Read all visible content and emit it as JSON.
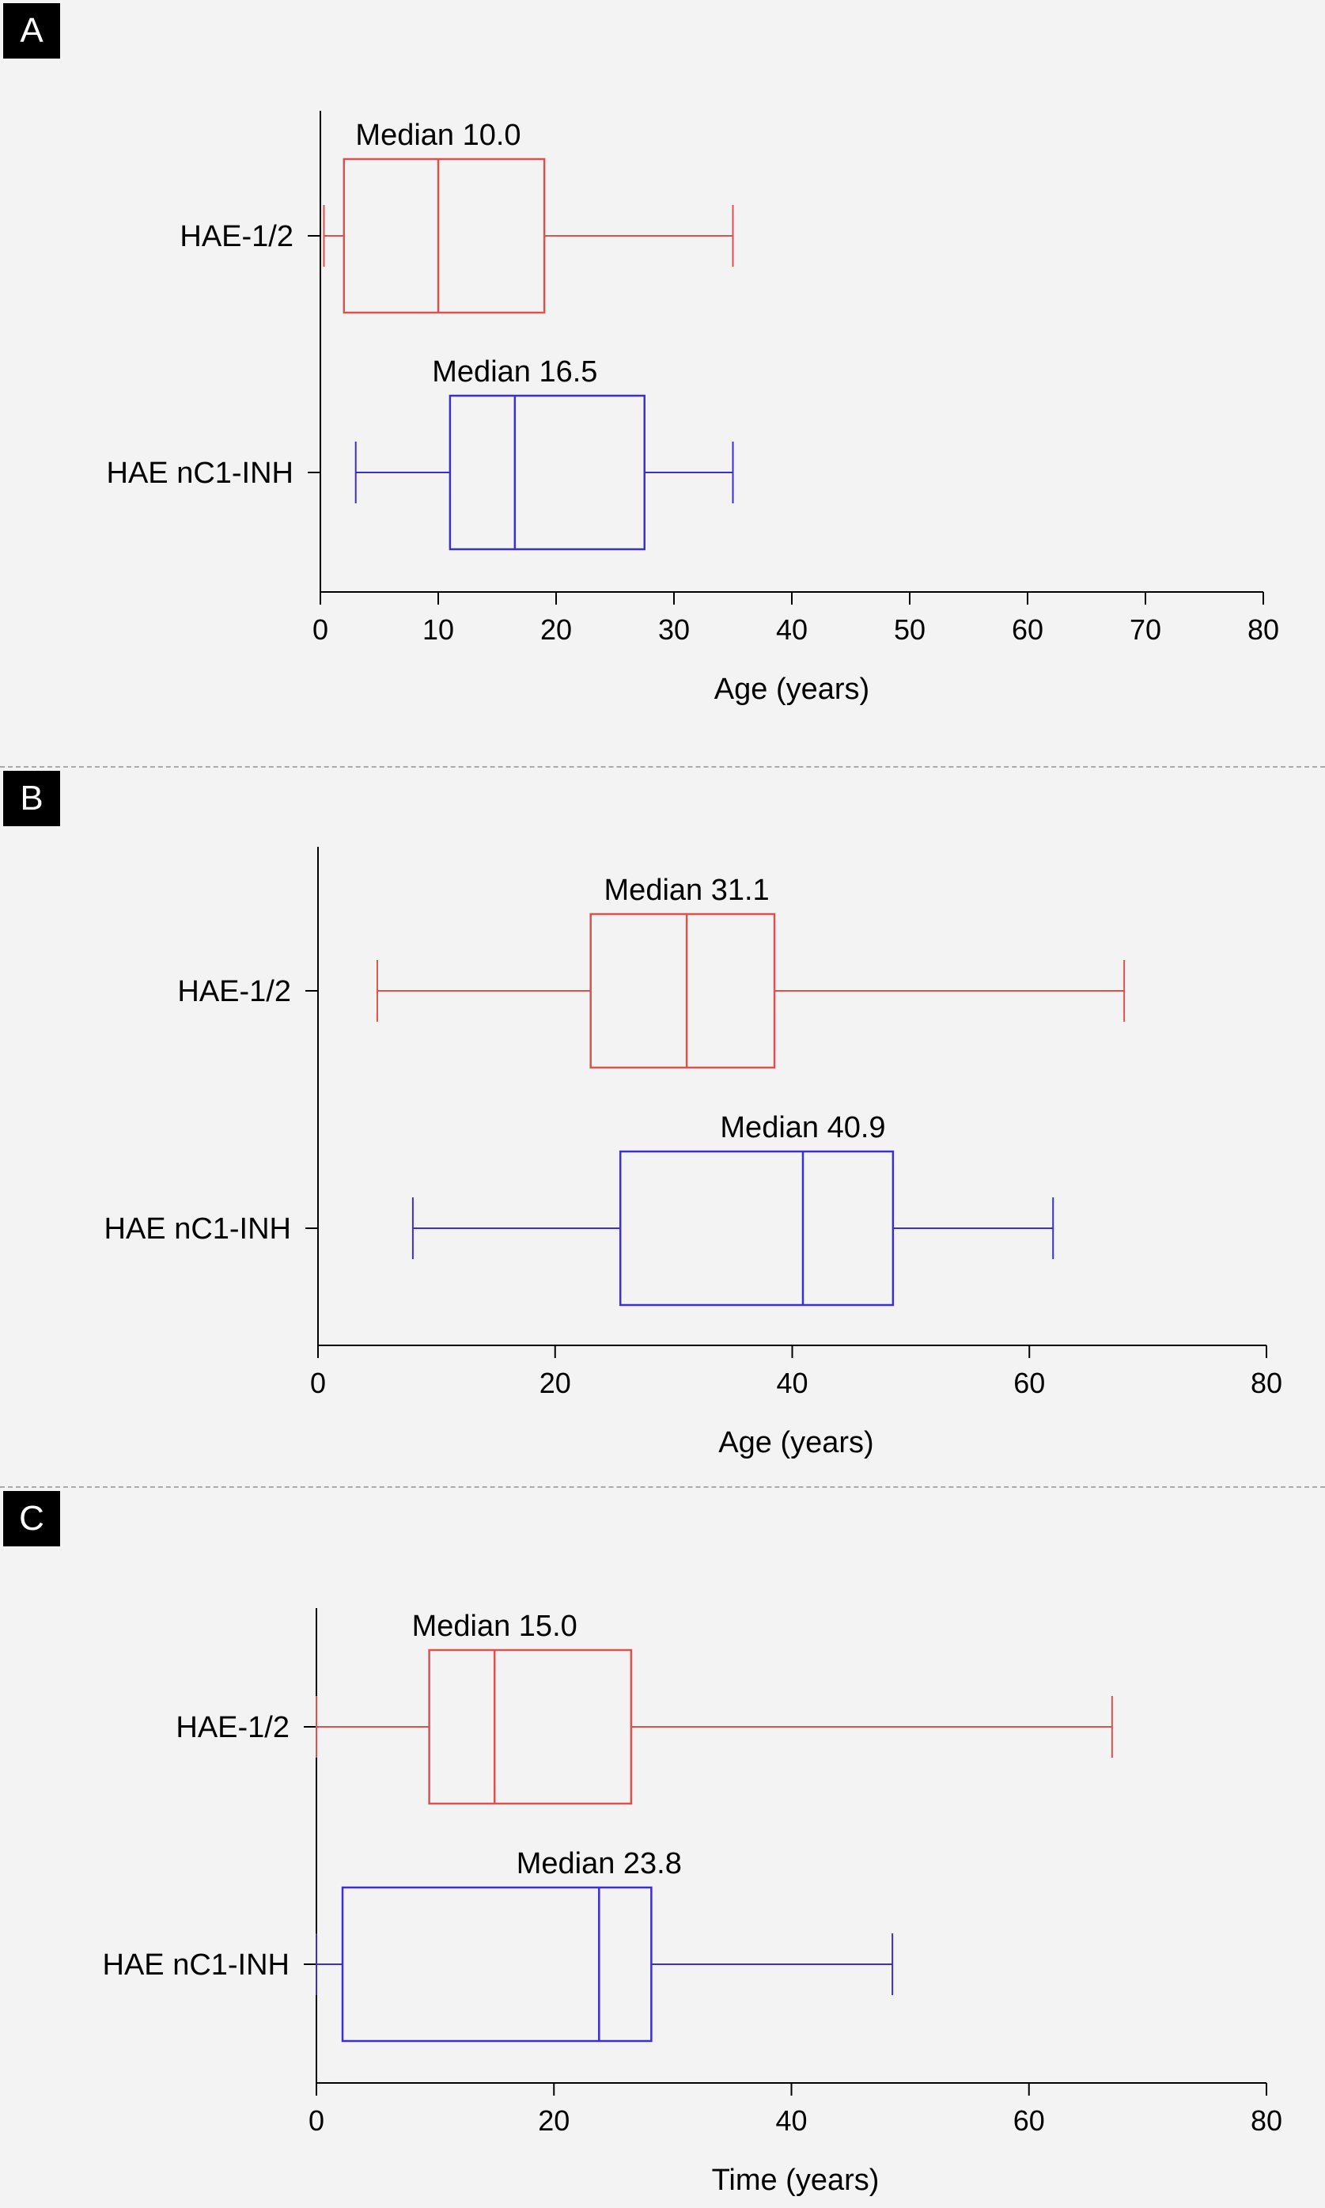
{
  "panels": [
    {
      "letter": "A"
    },
    {
      "letter": "B"
    },
    {
      "letter": "C"
    }
  ],
  "colors": {
    "hae12": "#d9534f",
    "nc1inh": "#3b2fd0",
    "axis": "#000000",
    "background": "#f3f3f3"
  },
  "chart_data": [
    {
      "type": "box",
      "panel": "A",
      "xlabel": "Age (years)",
      "xlim": [
        0,
        80
      ],
      "xticks": [
        0,
        10,
        20,
        30,
        40,
        50,
        60,
        70,
        80
      ],
      "grid": false,
      "series": [
        {
          "name": "HAE-1/2",
          "color": "#d9534f",
          "whisker_low": 0.3,
          "q1": 2,
          "median": 10.0,
          "q3": 19,
          "whisker_high": 35,
          "annotation": "Median 10.0"
        },
        {
          "name": "HAE nC1-INH",
          "color": "#3b2fd0",
          "whisker_low": 3,
          "q1": 11,
          "median": 16.5,
          "q3": 27.5,
          "whisker_high": 35,
          "annotation": "Median 16.5"
        }
      ]
    },
    {
      "type": "box",
      "panel": "B",
      "xlabel": "Age (years)",
      "xlim": [
        0,
        80
      ],
      "xticks": [
        0,
        20,
        40,
        60,
        80
      ],
      "grid": false,
      "series": [
        {
          "name": "HAE-1/2",
          "color": "#d9534f",
          "whisker_low": 5,
          "q1": 23,
          "median": 31.1,
          "q3": 38.5,
          "whisker_high": 68,
          "annotation": "Median 31.1"
        },
        {
          "name": "HAE nC1-INH",
          "color": "#3b2fd0",
          "whisker_low": 8,
          "q1": 25.5,
          "median": 40.9,
          "q3": 48.5,
          "whisker_high": 62,
          "annotation": "Median 40.9"
        }
      ]
    },
    {
      "type": "box",
      "panel": "C",
      "xlabel": "Time (years)",
      "xlim": [
        0,
        80
      ],
      "xticks": [
        0,
        20,
        40,
        60,
        80
      ],
      "grid": false,
      "series": [
        {
          "name": "HAE-1/2",
          "color": "#d9534f",
          "whisker_low": 0,
          "q1": 9.5,
          "median": 15.0,
          "q3": 26.5,
          "whisker_high": 67,
          "annotation": "Median 15.0"
        },
        {
          "name": "HAE nC1-INH",
          "color": "#3b2fd0",
          "whisker_low": 0,
          "q1": 2.2,
          "median": 23.8,
          "q3": 28.2,
          "whisker_high": 48.5,
          "annotation": "Median 23.8"
        }
      ]
    }
  ]
}
